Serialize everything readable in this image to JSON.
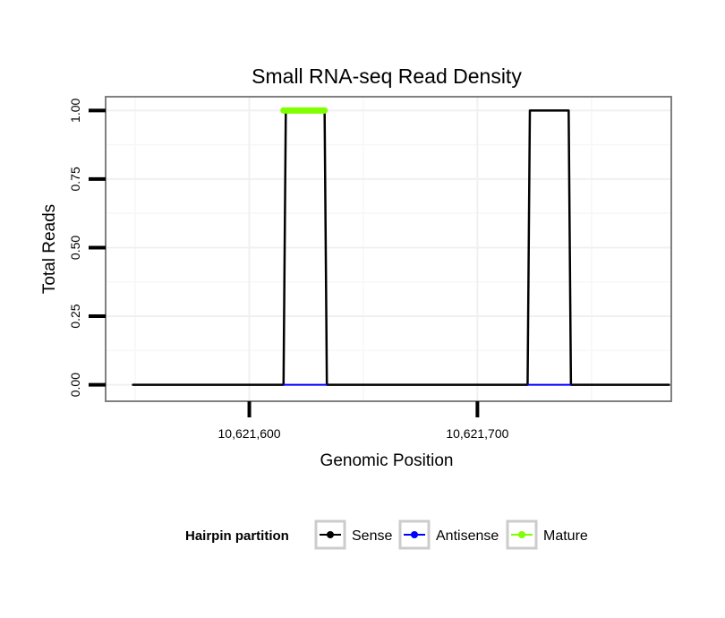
{
  "chart_data": {
    "type": "line",
    "title": "Small RNA-seq Read Density",
    "xlabel": "Genomic Position",
    "ylabel": "Total Reads",
    "xlim": [
      10621537,
      10621785
    ],
    "ylim": [
      -0.06,
      1.05
    ],
    "x_ticks": [
      {
        "value": 10621600,
        "label": "10,621,600"
      },
      {
        "value": 10621700,
        "label": "10,621,700"
      }
    ],
    "y_ticks": [
      {
        "value": 0,
        "label": "0.00"
      },
      {
        "value": 0.25,
        "label": "0.25"
      },
      {
        "value": 0.5,
        "label": "0.50"
      },
      {
        "value": 0.75,
        "label": "0.75"
      },
      {
        "value": 1.0,
        "label": "1.00"
      }
    ],
    "grid": true,
    "legend": {
      "title": "Hairpin partition",
      "position": "bottom"
    },
    "series": [
      {
        "name": "Sense",
        "color": "#000000",
        "x": [
          10621549,
          10621564,
          10621580,
          10621596,
          10621611,
          10621615,
          10621616,
          10621633,
          10621634,
          10621650,
          10621666,
          10621682,
          10621698,
          10621714,
          10621722,
          10621723,
          10621740,
          10621741,
          10621757,
          10621772,
          10621784
        ],
        "y": [
          0,
          0,
          0,
          0,
          0,
          0,
          1,
          1,
          0,
          0,
          0,
          0,
          0,
          0,
          0,
          1,
          1,
          0,
          0,
          0,
          0
        ]
      },
      {
        "name": "Antisense",
        "color": "#0000ff",
        "x": [
          10621615,
          10621634,
          10621722,
          10621741
        ],
        "y": [
          0,
          0,
          0,
          0
        ]
      },
      {
        "name": "Mature",
        "color": "#7fff00",
        "x": [
          10621615,
          10621618,
          10621621,
          10621624,
          10621627,
          10621630,
          10621633
        ],
        "y": [
          1,
          1,
          1,
          1,
          1,
          1,
          1
        ]
      }
    ]
  }
}
